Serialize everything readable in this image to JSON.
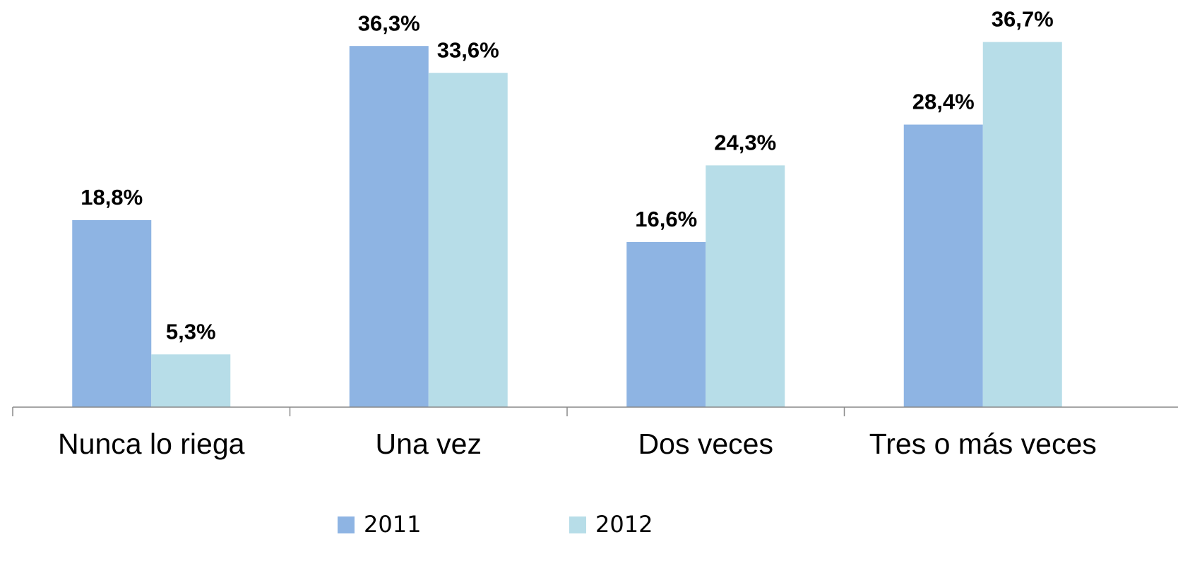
{
  "chart_data": {
    "type": "bar",
    "categories": [
      "Nunca lo riega",
      "Una vez",
      "Dos veces",
      "Tres o más veces"
    ],
    "series": [
      {
        "name": "2011",
        "color": "#8eb4e3",
        "values": [
          18.8,
          36.3,
          16.6,
          28.4
        ],
        "value_labels": [
          "18,8%",
          "36,3%",
          "16,6%",
          "28,4%"
        ]
      },
      {
        "name": "2012",
        "color": "#b7dde8",
        "values": [
          5.3,
          33.6,
          24.3,
          36.7
        ],
        "value_labels": [
          "5,3%",
          "33,6%",
          "24,3%",
          "36,7%"
        ]
      }
    ],
    "ylim": [
      0,
      40
    ],
    "legend": "bottom"
  }
}
